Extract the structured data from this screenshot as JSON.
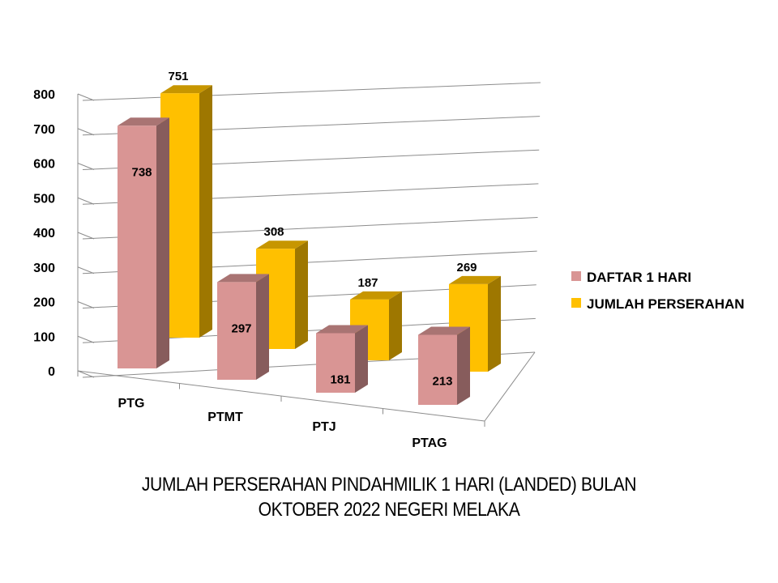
{
  "chart_data": {
    "type": "bar",
    "categories": [
      "PTG",
      "PTMT",
      "PTJ",
      "PTAG"
    ],
    "series": [
      {
        "name": "DAFTAR 1 HARI",
        "values": [
          738,
          297,
          181,
          213
        ],
        "color": "#d99594"
      },
      {
        "name": "JUMLAH PERSERAHAN",
        "values": [
          751,
          308,
          187,
          269
        ],
        "color": "#ffc000"
      }
    ],
    "ylim": [
      0,
      800
    ],
    "yticks": [
      0,
      100,
      200,
      300,
      400,
      500,
      600,
      700,
      800
    ],
    "grid": true,
    "legend": "right",
    "title_lines": [
      "JUMLAH PERSERAHAN PINDAHMILIK 1 HARI (LANDED) BULAN",
      "OKTOBER 2022 NEGERI MELAKA"
    ]
  }
}
